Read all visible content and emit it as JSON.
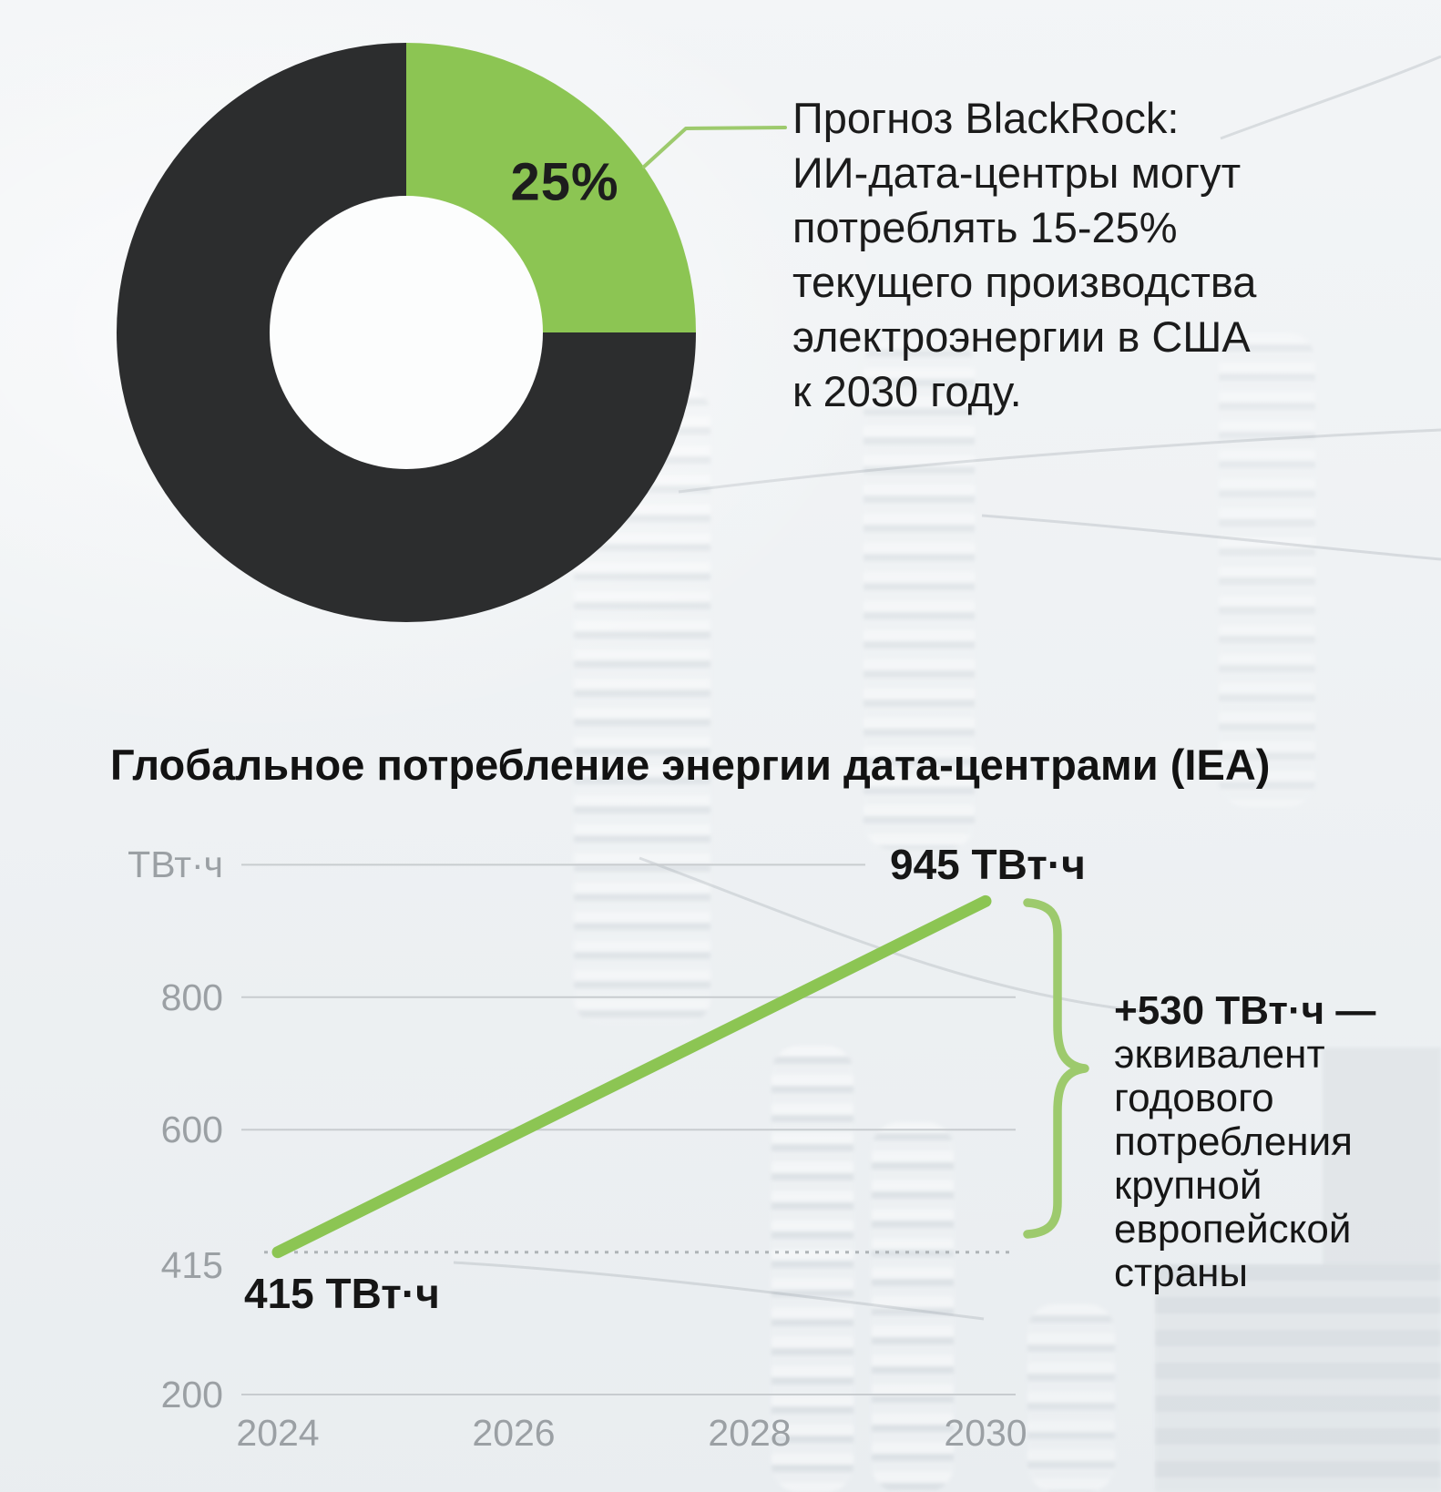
{
  "colors": {
    "accent_green": "#8CC553",
    "soft_green": "#9DCA6D",
    "dark_slice": "#2C2D2E",
    "grid_gray": "#C8CCCF",
    "dotted_gray": "#AFB4B7",
    "axis_label_gray": "#9BA0A4",
    "text_dark": "#161616"
  },
  "chart_data": [
    {
      "type": "pie",
      "donut": true,
      "title": "",
      "slices": [
        {
          "label": "25%",
          "value": 25,
          "color": "#8CC553"
        },
        {
          "label": "",
          "value": 75,
          "color": "#2C2D2E"
        }
      ],
      "annotation_lines": [
        "Прогноз BlackRock:",
        "ИИ-дата-центры могут",
        "потреблять 15-25%",
        "текущего производства",
        "электроэнергии в США",
        "к 2030 году."
      ]
    },
    {
      "type": "line",
      "title": "Глобальное потребление энергии дата-центрами (IEA)",
      "x": [
        2024,
        2030
      ],
      "values": [
        415,
        945
      ],
      "color": "#8CC553",
      "point_labels": [
        "415 ТВт·ч",
        "945 ТВт·ч"
      ],
      "xticks": [
        "2024",
        "2026",
        "2028",
        "2030"
      ],
      "yticks": [
        {
          "label": "ТВт·ч",
          "value": 1000,
          "short": true
        },
        {
          "label": "800",
          "value": 800
        },
        {
          "label": "600",
          "value": 600
        },
        {
          "label": "415",
          "value": 415,
          "style": "dotted"
        },
        {
          "label": "200",
          "value": 200
        }
      ],
      "ylim": [
        200,
        1000
      ],
      "grid": true,
      "legend": false,
      "annotation": {
        "bold": "+530 ТВт·ч —",
        "lines": [
          "эквивалент",
          "годового",
          "потребления",
          "крупной",
          "европейской",
          "страны"
        ]
      }
    }
  ]
}
